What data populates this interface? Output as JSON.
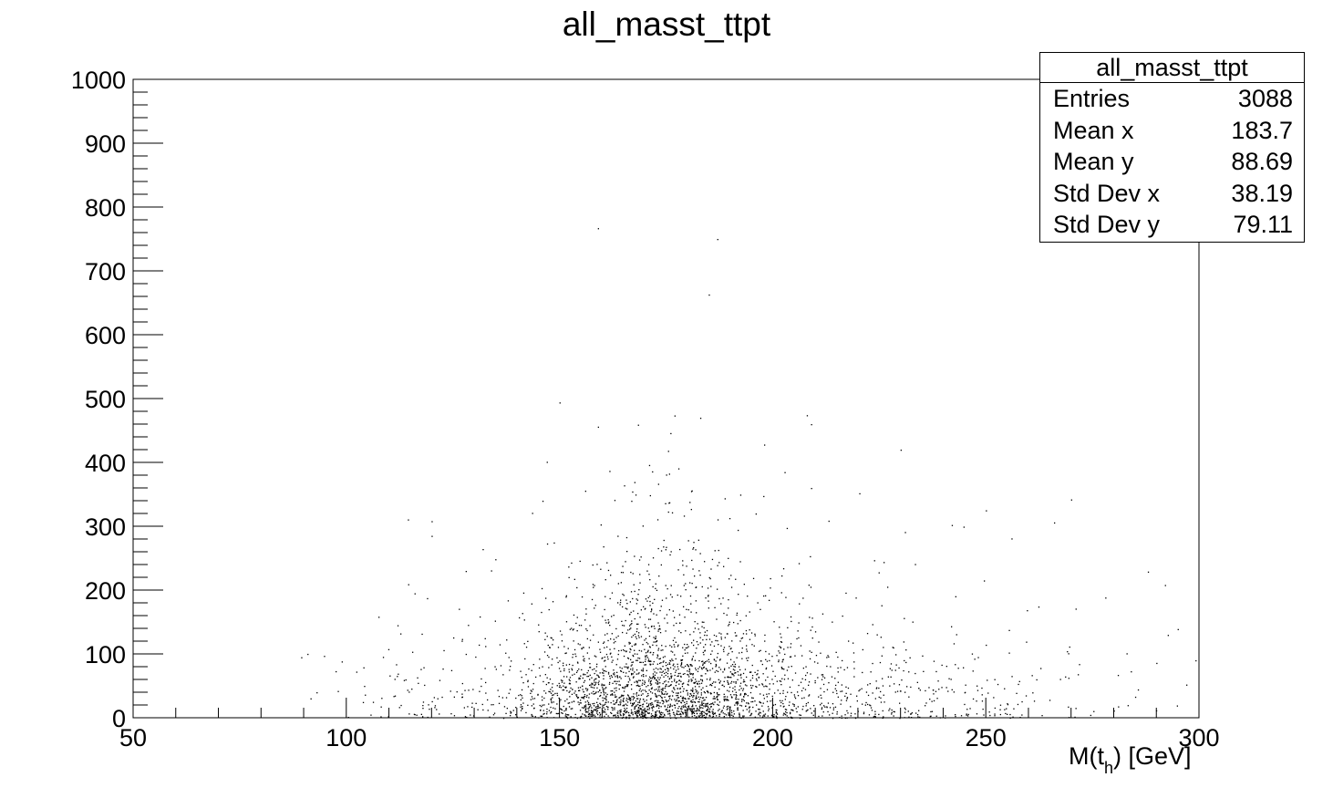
{
  "title": "all_masst_ttpt",
  "stats": {
    "name": "all_masst_ttpt",
    "rows": [
      {
        "key": "Entries",
        "value": "3088"
      },
      {
        "key": "Mean x",
        "value": "183.7"
      },
      {
        "key": "Mean y",
        "value": "88.69"
      },
      {
        "key": "Std Dev x",
        "value": "38.19"
      },
      {
        "key": "Std Dev y",
        "value": "79.11"
      }
    ]
  },
  "xlabel": {
    "prefix": "M(t",
    "sub": "h",
    "suffix": ") [GeV]"
  },
  "chart_data": {
    "type": "scatter",
    "title": "all_masst_ttpt",
    "xlabel": "M(t_h) [GeV]",
    "ylabel": "",
    "xlim": [
      50,
      300
    ],
    "ylim": [
      0,
      1000
    ],
    "xticks": [
      50,
      100,
      150,
      200,
      250,
      300
    ],
    "yticks": [
      0,
      100,
      200,
      300,
      400,
      500,
      600,
      700,
      800,
      900,
      1000
    ],
    "entries": 3088,
    "mean_x": 183.7,
    "mean_y": 88.69,
    "std_x": 38.19,
    "std_y": 79.11,
    "marker_color": "#000000",
    "outlier_points": [
      {
        "x": 159,
        "y": 767
      },
      {
        "x": 187,
        "y": 750
      },
      {
        "x": 185,
        "y": 663
      },
      {
        "x": 150,
        "y": 494
      },
      {
        "x": 208,
        "y": 474
      },
      {
        "x": 183,
        "y": 470
      },
      {
        "x": 159,
        "y": 456
      },
      {
        "x": 209,
        "y": 460
      },
      {
        "x": 176,
        "y": 446
      },
      {
        "x": 198,
        "y": 428
      },
      {
        "x": 230,
        "y": 420
      },
      {
        "x": 147,
        "y": 401
      },
      {
        "x": 171,
        "y": 396
      },
      {
        "x": 175,
        "y": 381
      },
      {
        "x": 209,
        "y": 360
      },
      {
        "x": 270,
        "y": 342
      },
      {
        "x": 146,
        "y": 340
      },
      {
        "x": 250,
        "y": 325
      },
      {
        "x": 266,
        "y": 306
      },
      {
        "x": 120,
        "y": 308
      },
      {
        "x": 242,
        "y": 302
      },
      {
        "x": 256,
        "y": 281
      },
      {
        "x": 288,
        "y": 229
      },
      {
        "x": 292,
        "y": 208
      },
      {
        "x": 231,
        "y": 291
      },
      {
        "x": 226,
        "y": 244
      },
      {
        "x": 112,
        "y": 145
      },
      {
        "x": 104,
        "y": 79
      },
      {
        "x": 93,
        "y": 40
      },
      {
        "x": 98,
        "y": 42
      },
      {
        "x": 295,
        "y": 139
      },
      {
        "x": 297,
        "y": 52
      },
      {
        "x": 283,
        "y": 101
      },
      {
        "x": 285,
        "y": 33
      },
      {
        "x": 290,
        "y": 86
      },
      {
        "x": 120,
        "y": 285
      },
      {
        "x": 116,
        "y": 195
      },
      {
        "x": 128,
        "y": 230
      },
      {
        "x": 196,
        "y": 320
      }
    ]
  }
}
